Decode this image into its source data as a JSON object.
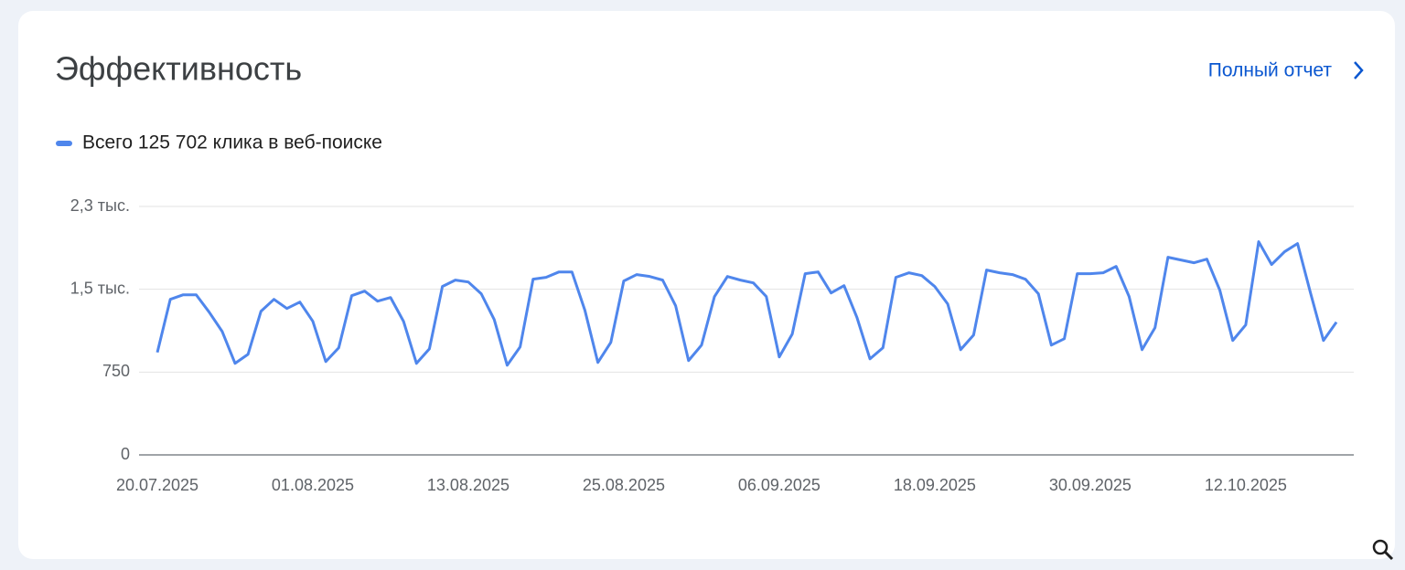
{
  "link": "Полный отчет",
  "chart_data": {
    "type": "line",
    "title": "Эффективность",
    "x": [
      "2025-07-20",
      "2025-07-21",
      "2025-07-22",
      "2025-07-23",
      "2025-07-24",
      "2025-07-25",
      "2025-07-26",
      "2025-07-27",
      "2025-07-28",
      "2025-07-29",
      "2025-07-30",
      "2025-07-31",
      "2025-08-01",
      "2025-08-02",
      "2025-08-03",
      "2025-08-04",
      "2025-08-05",
      "2025-08-06",
      "2025-08-07",
      "2025-08-08",
      "2025-08-09",
      "2025-08-10",
      "2025-08-11",
      "2025-08-12",
      "2025-08-13",
      "2025-08-14",
      "2025-08-15",
      "2025-08-16",
      "2025-08-17",
      "2025-08-18",
      "2025-08-19",
      "2025-08-20",
      "2025-08-21",
      "2025-08-22",
      "2025-08-23",
      "2025-08-24",
      "2025-08-25",
      "2025-08-26",
      "2025-08-27",
      "2025-08-28",
      "2025-08-29",
      "2025-08-30",
      "2025-08-31",
      "2025-09-01",
      "2025-09-02",
      "2025-09-03",
      "2025-09-04",
      "2025-09-05",
      "2025-09-06",
      "2025-09-07",
      "2025-09-08",
      "2025-09-09",
      "2025-09-10",
      "2025-09-11",
      "2025-09-12",
      "2025-09-13",
      "2025-09-14",
      "2025-09-15",
      "2025-09-16",
      "2025-09-17",
      "2025-09-18",
      "2025-09-19",
      "2025-09-20",
      "2025-09-21",
      "2025-09-22",
      "2025-09-23",
      "2025-09-24",
      "2025-09-25",
      "2025-09-26",
      "2025-09-27",
      "2025-09-28",
      "2025-09-29",
      "2025-09-30",
      "2025-10-01",
      "2025-10-02",
      "2025-10-03",
      "2025-10-04",
      "2025-10-05",
      "2025-10-06",
      "2025-10-07",
      "2025-10-08",
      "2025-10-09",
      "2025-10-10",
      "2025-10-11",
      "2025-10-12",
      "2025-10-13",
      "2025-10-14",
      "2025-10-15",
      "2025-10-16",
      "2025-10-17",
      "2025-10-18",
      "2025-10-19"
    ],
    "series": [
      {
        "name": "Всего 125 702 клика в веб-поиске",
        "color": "#4f86ec",
        "values": [
          928,
          1409,
          1450,
          1450,
          1293,
          1119,
          829,
          911,
          1301,
          1409,
          1326,
          1384,
          1210,
          845,
          970,
          1442,
          1483,
          1392,
          1425,
          1210,
          829,
          961,
          1525,
          1583,
          1566,
          1459,
          1226,
          812,
          978,
          1591,
          1608,
          1657,
          1657,
          1309,
          837,
          1019,
          1575,
          1633,
          1616,
          1583,
          1351,
          854,
          994,
          1434,
          1616,
          1583,
          1558,
          1434,
          887,
          1094,
          1641,
          1657,
          1467,
          1533,
          1243,
          870,
          970,
          1608,
          1649,
          1624,
          1525,
          1367,
          953,
          1086,
          1674,
          1649,
          1633,
          1591,
          1459,
          994,
          1052,
          1641,
          1641,
          1649,
          1707,
          1434,
          953,
          1152,
          1790,
          1765,
          1740,
          1773,
          1492,
          1036,
          1177,
          1931,
          1724,
          1840,
          1914,
          1467,
          1036,
          1202
        ]
      }
    ],
    "ylim": [
      0,
      2250
    ],
    "yticks": [
      0,
      750,
      {
        "value": 1500,
        "label": "1,5 тыс."
      },
      {
        "value": 2250,
        "label": "2,3 тыс."
      }
    ],
    "xticks": [
      {
        "value": "2025-07-20",
        "label": "20.07.2025"
      },
      {
        "value": "2025-08-01",
        "label": "01.08.2025"
      },
      {
        "value": "2025-08-13",
        "label": "13.08.2025"
      },
      {
        "value": "2025-08-25",
        "label": "25.08.2025"
      },
      {
        "value": "2025-09-06",
        "label": "06.09.2025"
      },
      {
        "value": "2025-09-18",
        "label": "18.09.2025"
      },
      {
        "value": "2025-09-30",
        "label": "30.09.2025"
      },
      {
        "value": "2025-10-12",
        "label": "12.10.2025"
      }
    ],
    "grid": true
  }
}
